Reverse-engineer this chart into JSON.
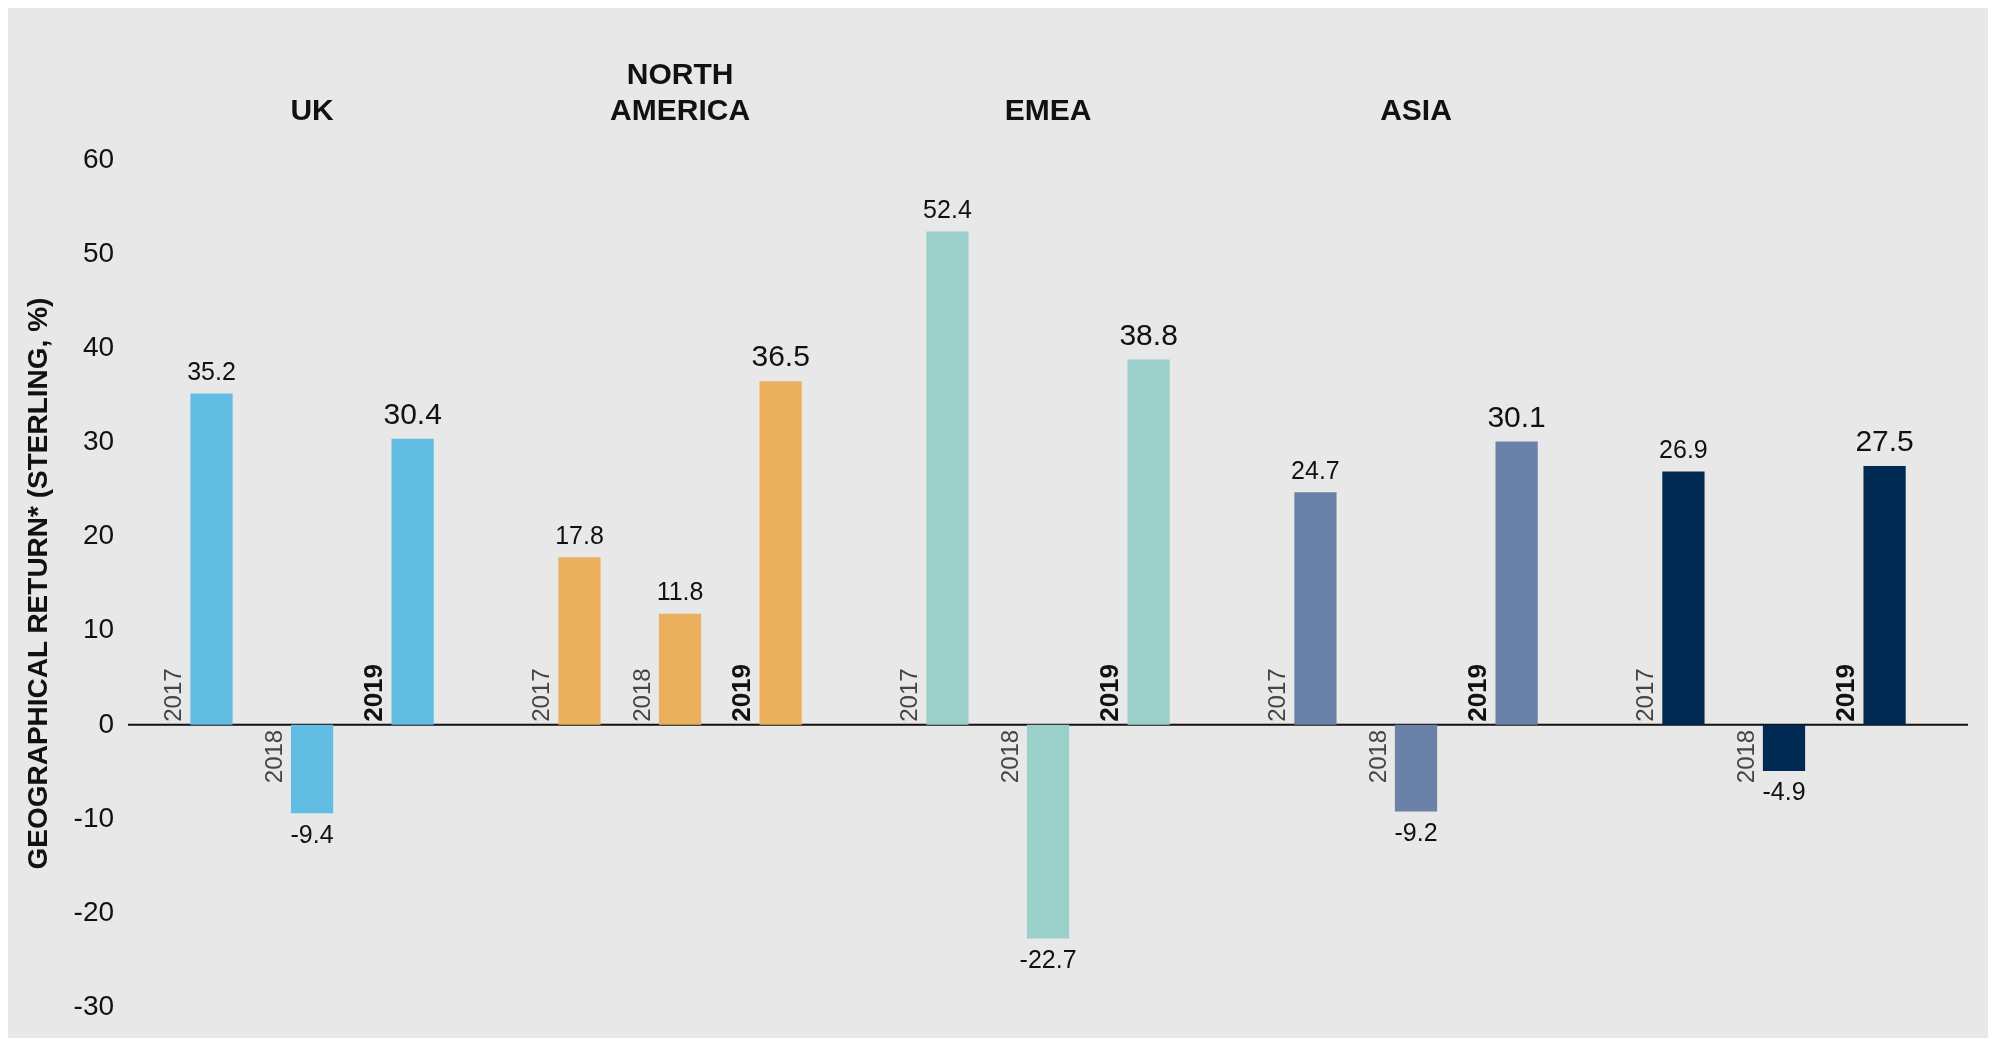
{
  "chart_data": {
    "type": "bar",
    "ylabel": "GEOGRAPHICAL RETURN* (STERLING, %)",
    "categories": [
      "UK",
      "NORTH AMERICA",
      "EMEA",
      "ASIA",
      null
    ],
    "series": [
      {
        "name": "2017",
        "values": [
          35.2,
          17.8,
          52.4,
          24.7,
          26.9
        ],
        "colors": [
          "#62bde3",
          "#ebb05e",
          "#9bcfca",
          "#6b82a8",
          "#012a52"
        ]
      },
      {
        "name": "2018",
        "values": [
          -9.4,
          11.8,
          -22.7,
          -9.2,
          -4.9
        ],
        "colors": [
          "#62bde3",
          "#ebb05e",
          "#9bcfca",
          "#6b82a8",
          "#012a52"
        ]
      },
      {
        "name": "2019",
        "values": [
          30.4,
          36.5,
          38.8,
          30.1,
          27.5
        ],
        "colors": [
          "#62bde3",
          "#ebb05e",
          "#9bcfca",
          "#6b82a8",
          "#012a52"
        ]
      }
    ],
    "ylim": [
      -30,
      60
    ],
    "yticks": [
      -30,
      -20,
      -10,
      0,
      10,
      20,
      30,
      40,
      50,
      60
    ],
    "ref_lines": [
      {
        "axis": "y",
        "value": 0,
        "color": "#111111"
      }
    ],
    "data_labels": true,
    "grid": false,
    "legend": false
  }
}
